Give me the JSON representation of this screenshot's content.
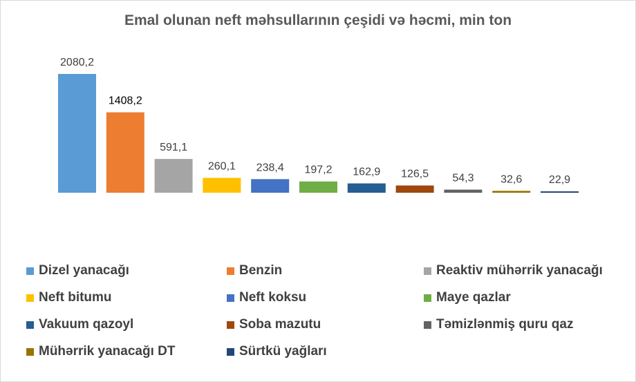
{
  "chart_data": {
    "type": "bar",
    "title": "Emal olunan neft məhsullarının çeşidi və həcmi, min ton",
    "xlabel": "",
    "ylabel": "",
    "ylim": [
      0,
      2080.2
    ],
    "grid": false,
    "legend_position": "bottom",
    "series": [
      {
        "name": "Dizel yanacağı",
        "value": 2080.2,
        "label": "2080,2",
        "color": "#5B9BD5"
      },
      {
        "name": "Benzin",
        "value": 1408.2,
        "label": "1408,2",
        "color": "#ED7D31"
      },
      {
        "name": "Reaktiv mühərrik yanacağı",
        "value": 591.1,
        "label": "591,1",
        "color": "#A5A5A5"
      },
      {
        "name": "Neft bitumu",
        "value": 260.1,
        "label": "260,1",
        "color": "#FFC000"
      },
      {
        "name": "Neft koksu",
        "value": 238.4,
        "label": "238,4",
        "color": "#4472C4"
      },
      {
        "name": "Maye qazlar",
        "value": 197.2,
        "label": "197,2",
        "color": "#70AD47"
      },
      {
        "name": "Vakuum qazoyl",
        "value": 162.9,
        "label": "162,9",
        "color": "#255E91"
      },
      {
        "name": "Soba mazutu",
        "value": 126.5,
        "label": "126,5",
        "color": "#9E480E"
      },
      {
        "name": "Təmizlənmiş quru qaz",
        "value": 54.3,
        "label": "54,3",
        "color": "#636363"
      },
      {
        "name": "Mühərrik yanacağı DT",
        "value": 32.6,
        "label": "32,6",
        "color": "#997300"
      },
      {
        "name": "Sürtkü yağları",
        "value": 22.9,
        "label": "22,9",
        "color": "#264478"
      }
    ]
  }
}
